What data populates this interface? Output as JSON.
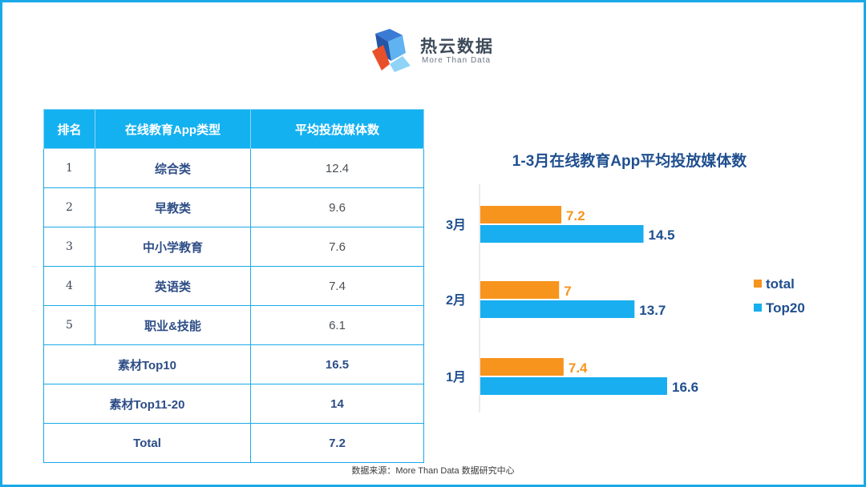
{
  "logo": {
    "name": "热云数据",
    "subtitle": "More Than Data"
  },
  "table": {
    "headers": [
      "排名",
      "在线教育App类型",
      "平均投放媒体数"
    ],
    "rows": [
      {
        "rank": "1",
        "type": "综合类",
        "value": "12.4"
      },
      {
        "rank": "2",
        "type": "早教类",
        "value": "9.6"
      },
      {
        "rank": "3",
        "type": "中小学教育",
        "value": "7.6"
      },
      {
        "rank": "4",
        "type": "英语类",
        "value": "7.4"
      },
      {
        "rank": "5",
        "type": "职业&技能",
        "value": "6.1"
      }
    ],
    "summary": [
      {
        "label": "素材Top10",
        "value": "16.5"
      },
      {
        "label": "素材Top11-20",
        "value": "14"
      },
      {
        "label": "Total",
        "value": "7.2"
      }
    ]
  },
  "chart_data": {
    "type": "bar",
    "orientation": "horizontal",
    "title": "1-3月在线教育App平均投放媒体数",
    "categories": [
      "3月",
      "2月",
      "1月"
    ],
    "series": [
      {
        "name": "total",
        "color": "#f7941d",
        "values": [
          7.2,
          7,
          7.4
        ]
      },
      {
        "name": "Top20",
        "color": "#18aef0",
        "values": [
          14.5,
          13.7,
          16.6
        ]
      }
    ],
    "xlim": [
      0,
      20
    ],
    "legend_position": "right",
    "grid": false
  },
  "source": "数据来源：More Than Data 数据研究中心"
}
